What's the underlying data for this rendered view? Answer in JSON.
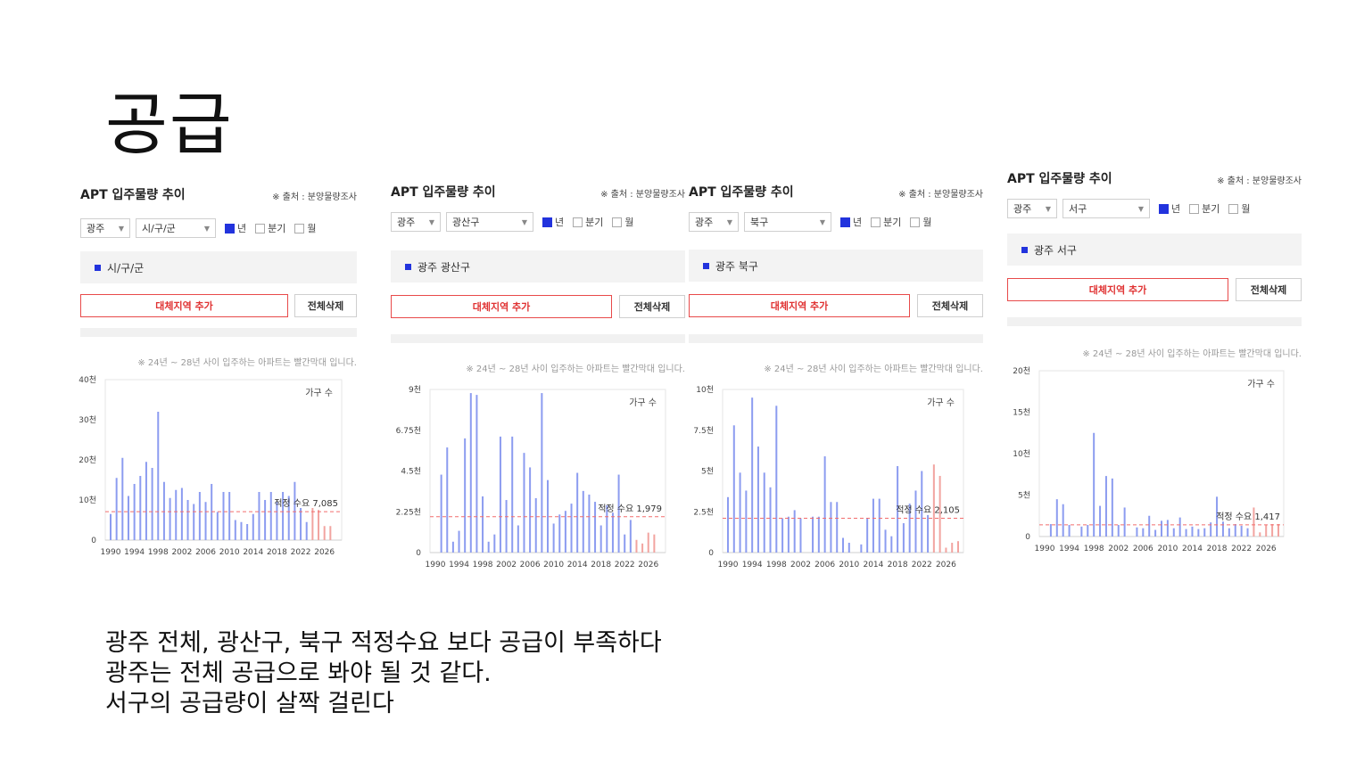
{
  "slide": {
    "title": "공급",
    "conclusion": [
      "광주 전체, 광산구, 북구 적정수요 보다 공급이 부족하다",
      "광주는 전체 공급으로 봐야 될 것 같다.",
      "서구의 공급량이 살짝 걸린다"
    ]
  },
  "colors": {
    "bar": "#8c9cf0",
    "future_bar": "#f2a4a0",
    "demand_line": "#f26d6d",
    "checkbox_on": "#2233dd",
    "add_button": "#e03333"
  },
  "panels": [
    {
      "title": "APT 입주물량 추이",
      "source": "※ 출처 : 분양물량조사",
      "city": "광주",
      "district": "시/구/군",
      "check_year": "년",
      "check_quarter": "분기",
      "check_month": "월",
      "region_label": "시/구/군",
      "add_label": "대체지역 추가",
      "delete_label": "전체삭제",
      "note": "※ 24년 ~ 28년 사이 입주하는 아파트는 빨간막대 입니다.",
      "legend": "가구 수",
      "demand_label": "적정 수요 7,085"
    },
    {
      "title": "APT 입주물량 추이",
      "source": "※ 출처 : 분양물량조사",
      "city": "광주",
      "district": "광산구",
      "check_year": "년",
      "check_quarter": "분기",
      "check_month": "월",
      "region_label": "광주 광산구",
      "add_label": "대체지역 추가",
      "delete_label": "전체삭제",
      "note": "※ 24년 ~ 28년 사이 입주하는 아파트는 빨간막대 입니다.",
      "legend": "가구 수",
      "demand_label": "적정 수요 1,979"
    },
    {
      "title": "APT 입주물량 추이",
      "source": "※ 출처 : 분양물량조사",
      "city": "광주",
      "district": "북구",
      "check_year": "년",
      "check_quarter": "분기",
      "check_month": "월",
      "region_label": "광주 북구",
      "add_label": "대체지역 추가",
      "delete_label": "전체삭제",
      "note": "※ 24년 ~ 28년 사이 입주하는 아파트는 빨간막대 입니다.",
      "legend": "가구 수",
      "demand_label": "적정 수요 2,105"
    },
    {
      "title": "APT 입주물량 추이",
      "source": "※ 출처 : 분양물량조사",
      "city": "광주",
      "district": "서구",
      "check_year": "년",
      "check_quarter": "분기",
      "check_month": "월",
      "region_label": "광주 서구",
      "add_label": "대체지역 추가",
      "delete_label": "전체삭제",
      "note": "※ 24년 ~ 28년 사이 입주하는 아파트는 빨간막대 입니다.",
      "legend": "가구 수",
      "demand_label": "적정 수요 1,417"
    }
  ],
  "chart_data": [
    {
      "type": "bar",
      "ylim": [
        0,
        40000
      ],
      "yticks": [
        0,
        10000,
        20000,
        30000,
        40000
      ],
      "ytick_labels": [
        "0",
        "10천",
        "20천",
        "30천",
        "40천"
      ],
      "xtick_labels": [
        "1990",
        "1994",
        "1998",
        "2002",
        "2006",
        "2010",
        "2014",
        "2018",
        "2022",
        "2026"
      ],
      "x_range": [
        1990,
        2028
      ],
      "future_from": 2024,
      "demand": 7085,
      "years": [
        1990,
        1991,
        1992,
        1993,
        1994,
        1995,
        1996,
        1997,
        1998,
        1999,
        2000,
        2001,
        2002,
        2003,
        2004,
        2005,
        2006,
        2007,
        2008,
        2009,
        2010,
        2011,
        2012,
        2013,
        2014,
        2015,
        2016,
        2017,
        2018,
        2019,
        2020,
        2021,
        2022,
        2023,
        2024,
        2025,
        2026,
        2027,
        2028
      ],
      "values": [
        6500,
        15500,
        20500,
        11000,
        14000,
        16000,
        19500,
        18000,
        32000,
        14500,
        10500,
        12500,
        13000,
        10000,
        9000,
        12000,
        9500,
        14000,
        7000,
        12000,
        12000,
        5000,
        4500,
        4000,
        6500,
        12000,
        10000,
        12000,
        9500,
        12000,
        11000,
        14500,
        8000,
        4500,
        8000,
        7500,
        3500,
        3500,
        0
      ]
    },
    {
      "type": "bar",
      "ylim": [
        0,
        9000
      ],
      "yticks": [
        0,
        2250,
        4500,
        6750,
        9000
      ],
      "ytick_labels": [
        "0",
        "2.25천",
        "4.5천",
        "6.75천",
        "9천"
      ],
      "xtick_labels": [
        "1990",
        "1994",
        "1998",
        "2002",
        "2006",
        "2010",
        "2014",
        "2018",
        "2022",
        "2026"
      ],
      "x_range": [
        1990,
        2028
      ],
      "future_from": 2024,
      "demand": 1979,
      "years": [
        1990,
        1991,
        1992,
        1993,
        1994,
        1995,
        1996,
        1997,
        1998,
        1999,
        2000,
        2001,
        2002,
        2003,
        2004,
        2005,
        2006,
        2007,
        2008,
        2009,
        2010,
        2011,
        2012,
        2013,
        2014,
        2015,
        2016,
        2017,
        2018,
        2019,
        2020,
        2021,
        2022,
        2023,
        2024,
        2025,
        2026,
        2027,
        2028
      ],
      "values": [
        0,
        4300,
        5800,
        600,
        1200,
        6300,
        8800,
        8700,
        3100,
        600,
        1000,
        6400,
        2900,
        6400,
        1500,
        5500,
        4700,
        3000,
        8800,
        4000,
        1600,
        2100,
        2300,
        2700,
        4400,
        3400,
        3200,
        2800,
        1500,
        2600,
        2200,
        4300,
        1000,
        1800,
        700,
        500,
        1100,
        1000,
        0
      ]
    },
    {
      "type": "bar",
      "ylim": [
        0,
        10000
      ],
      "yticks": [
        0,
        2500,
        5000,
        7500,
        10000
      ],
      "ytick_labels": [
        "0",
        "2.5천",
        "5천",
        "7.5천",
        "10천"
      ],
      "xtick_labels": [
        "1990",
        "1994",
        "1998",
        "2002",
        "2006",
        "2010",
        "2014",
        "2018",
        "2022",
        "2026"
      ],
      "x_range": [
        1990,
        2028
      ],
      "future_from": 2024,
      "demand": 2105,
      "years": [
        1990,
        1991,
        1992,
        1993,
        1994,
        1995,
        1996,
        1997,
        1998,
        1999,
        2000,
        2001,
        2002,
        2003,
        2004,
        2005,
        2006,
        2007,
        2008,
        2009,
        2010,
        2011,
        2012,
        2013,
        2014,
        2015,
        2016,
        2017,
        2018,
        2019,
        2020,
        2021,
        2022,
        2023,
        2024,
        2025,
        2026,
        2027,
        2028
      ],
      "values": [
        3400,
        7800,
        4900,
        3800,
        9500,
        6500,
        4900,
        4000,
        9000,
        2100,
        2200,
        2600,
        2100,
        0,
        2200,
        2200,
        5900,
        3100,
        3100,
        900,
        600,
        0,
        500,
        2100,
        3300,
        3300,
        1400,
        1000,
        5300,
        1800,
        3000,
        3800,
        5000,
        2300,
        5400,
        4700,
        300,
        600,
        700
      ]
    },
    {
      "type": "bar",
      "ylim": [
        0,
        20000
      ],
      "yticks": [
        0,
        5000,
        10000,
        15000,
        20000
      ],
      "ytick_labels": [
        "0",
        "5천",
        "10천",
        "15천",
        "20천"
      ],
      "xtick_labels": [
        "1990",
        "1994",
        "1998",
        "2002",
        "2006",
        "2010",
        "2014",
        "2018",
        "2022",
        "2026"
      ],
      "x_range": [
        1990,
        2028
      ],
      "future_from": 2024,
      "demand": 1417,
      "years": [
        1990,
        1991,
        1992,
        1993,
        1994,
        1995,
        1996,
        1997,
        1998,
        1999,
        2000,
        2001,
        2002,
        2003,
        2004,
        2005,
        2006,
        2007,
        2008,
        2009,
        2010,
        2011,
        2012,
        2013,
        2014,
        2015,
        2016,
        2017,
        2018,
        2019,
        2020,
        2021,
        2022,
        2023,
        2024,
        2025,
        2026,
        2027,
        2028
      ],
      "values": [
        0,
        1500,
        4500,
        3900,
        1400,
        0,
        1200,
        1400,
        12500,
        3700,
        7300,
        7000,
        1400,
        3500,
        0,
        1100,
        1000,
        2500,
        800,
        1900,
        2000,
        1000,
        2300,
        900,
        1200,
        900,
        1000,
        1700,
        4800,
        1800,
        1000,
        1500,
        1300,
        1000,
        3500,
        500,
        1400,
        1500,
        1500
      ]
    }
  ]
}
